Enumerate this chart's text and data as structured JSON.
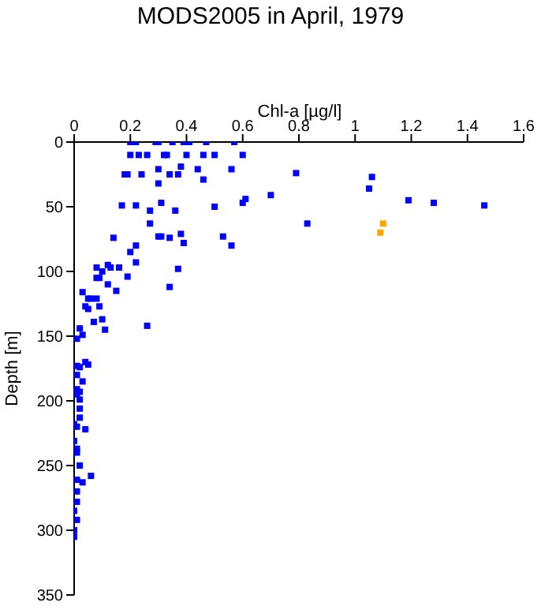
{
  "chart_data": {
    "type": "scatter",
    "title": "MODS2005 in April, 1979",
    "xlabel": "Chl-a [µg/l]",
    "ylabel": "Depth [m]",
    "xlim": [
      0,
      1.6
    ],
    "xticks": [
      0,
      0.2,
      0.4,
      0.6,
      0.8,
      1,
      1.2,
      1.4,
      1.6
    ],
    "ylim": [
      350,
      0
    ],
    "yticks": [
      0,
      50,
      100,
      150,
      200,
      250,
      300,
      350
    ],
    "grid": false,
    "legend": false,
    "marker": "square",
    "series": [
      {
        "color": "#0000ff",
        "x": [
          0.2,
          0.22,
          0.29,
          0.3,
          0.35,
          0.39,
          0.41,
          0.47,
          0.57,
          0.2,
          0.23,
          0.26,
          0.32,
          0.33,
          0.4,
          0.46,
          0.5,
          0.6,
          0.38,
          0.3,
          0.44,
          0.56,
          0.18,
          0.19,
          0.24,
          0.34,
          0.37,
          0.79,
          0.46,
          0.3,
          1.06,
          1.05,
          0.61,
          0.7,
          1.19,
          1.28,
          1.46,
          0.17,
          0.22,
          0.31,
          0.27,
          0.36,
          0.5,
          0.6,
          0.27,
          0.83,
          0.14,
          0.3,
          0.31,
          0.34,
          0.38,
          0.53,
          0.56,
          0.39,
          0.22,
          0.2,
          0.22,
          0.08,
          0.1,
          0.12,
          0.13,
          0.16,
          0.37,
          0.19,
          0.08,
          0.09,
          0.12,
          0.15,
          0.34,
          0.03,
          0.05,
          0.06,
          0.08,
          0.09,
          0.04,
          0.05,
          0.1,
          0.07,
          0.26,
          0.02,
          0.11,
          0.03,
          0.01,
          0.04,
          0.05,
          0.01,
          0.02,
          0.01,
          0.03,
          0.01,
          0.02,
          0.01,
          0.02,
          0.02,
          0.02,
          0.0,
          0.01,
          0.04,
          0.0,
          0.01,
          0.01,
          0.02,
          0.06,
          0.03,
          0.01,
          0.01,
          0.01,
          0.0,
          0.01,
          0.0,
          0.0
        ],
        "values": [
          0,
          0,
          0,
          0,
          0,
          0,
          0,
          0,
          0,
          10,
          10,
          10,
          10,
          10,
          10,
          10,
          10,
          10,
          19,
          21,
          21,
          21,
          25,
          25,
          25,
          25,
          25,
          24,
          29,
          32,
          27,
          36,
          44,
          41,
          45,
          47,
          49,
          49,
          49,
          47,
          53,
          53,
          50,
          47,
          63,
          63,
          74,
          73,
          73,
          74,
          71,
          73,
          80,
          78,
          80,
          85,
          93,
          97,
          100,
          95,
          97,
          97,
          98,
          104,
          105,
          105,
          110,
          115,
          112,
          116,
          121,
          121,
          121,
          127,
          127,
          129,
          137,
          139,
          142,
          144,
          145,
          149,
          152,
          170,
          172,
          173,
          174,
          180,
          185,
          191,
          193,
          195,
          199,
          206,
          213,
          218,
          220,
          222,
          231,
          237,
          240,
          250,
          258,
          263,
          261,
          270,
          278,
          285,
          292,
          300,
          305
        ]
      },
      {
        "color": "#ffa500",
        "x": [
          1.1,
          1.09
        ],
        "values": [
          63,
          70
        ]
      }
    ]
  }
}
